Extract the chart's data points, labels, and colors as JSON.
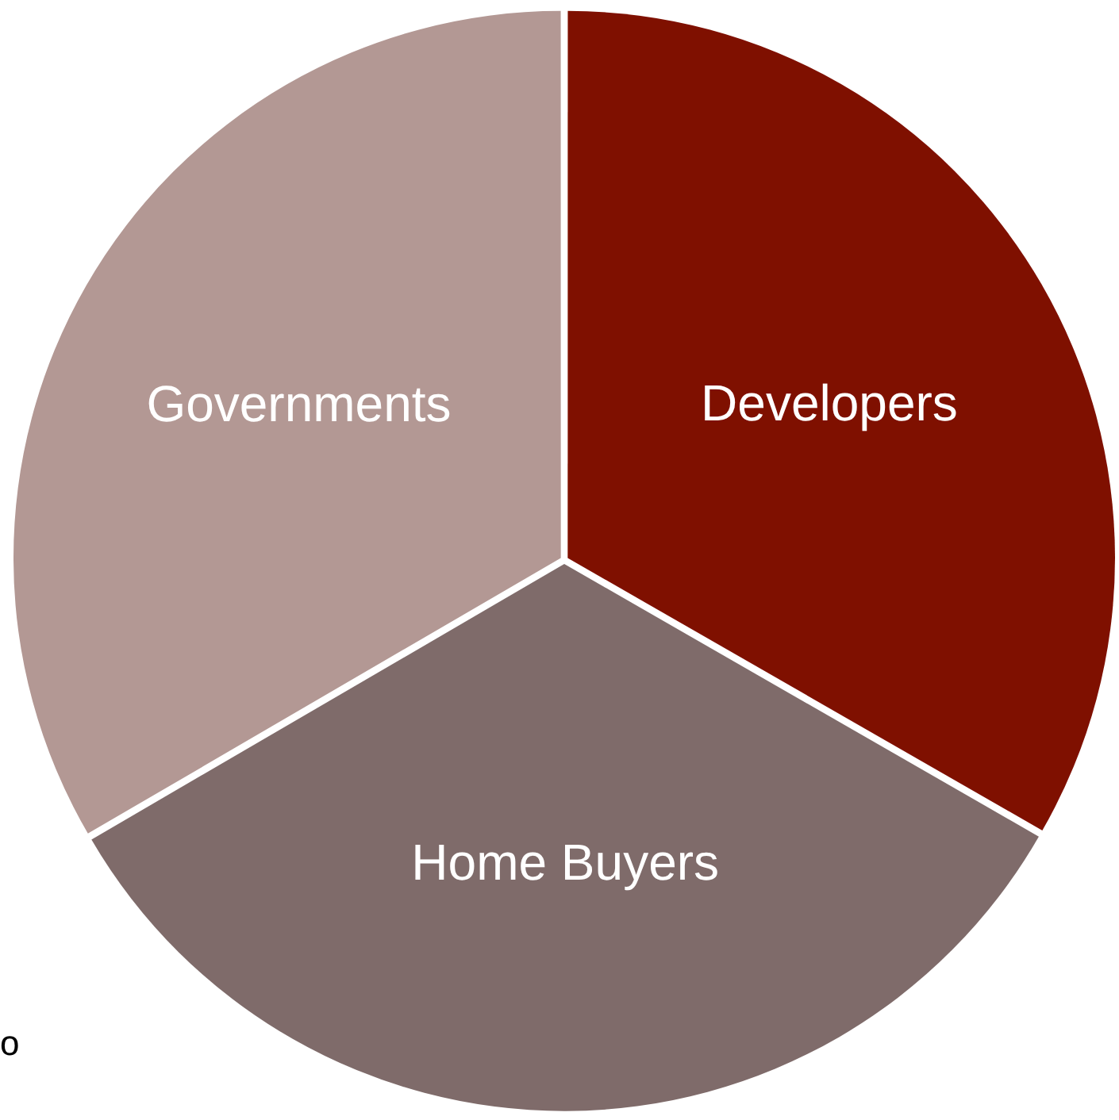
{
  "chart_data": {
    "type": "pie",
    "categories": [
      "Developers",
      "Home Buyers",
      "Governments"
    ],
    "values": [
      33.3,
      33.3,
      33.4
    ],
    "colors": [
      "#7f1000",
      "#7f6b6a",
      "#b39894"
    ],
    "annotations": [
      "o"
    ],
    "legend": false
  }
}
